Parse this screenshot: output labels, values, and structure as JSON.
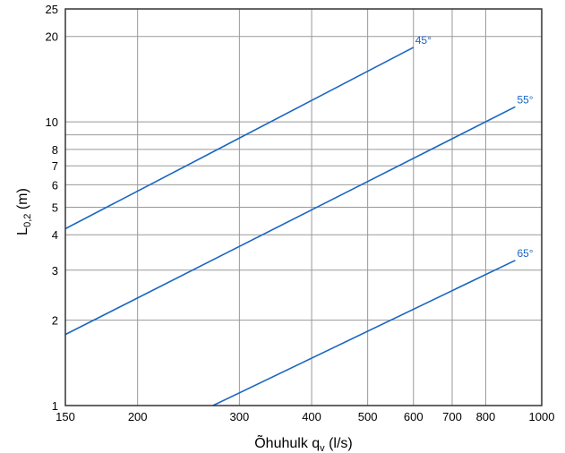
{
  "chart_data": {
    "type": "line",
    "x_scale": "log",
    "y_scale": "log",
    "xlim": [
      150,
      1000
    ],
    "ylim": [
      1,
      25
    ],
    "x_ticks": [
      150,
      200,
      300,
      400,
      500,
      600,
      700,
      800,
      1000
    ],
    "x_tick_labels": [
      "150",
      "200",
      "300",
      "400",
      "500",
      "600",
      "700",
      "800",
      "1000"
    ],
    "y_ticks": [
      1,
      2,
      3,
      4,
      5,
      6,
      7,
      8,
      10,
      20,
      25
    ],
    "y_tick_labels": [
      "1",
      "2",
      "3",
      "4",
      "5",
      "6",
      "7",
      "8",
      "10",
      "20",
      "25"
    ],
    "y_extra_gridlines": [
      9
    ],
    "grid": true,
    "xlabel_main": "Õhuhulk q",
    "xlabel_sub": "v",
    "xlabel_tail": " (l/s)",
    "ylabel_main": "L",
    "ylabel_sub": "0,2",
    "ylabel_tail": " (m)",
    "series": [
      {
        "name": "45°",
        "color": "#1a66c2",
        "x": [
          150,
          600
        ],
        "y": [
          4.2,
          18.3
        ]
      },
      {
        "name": "55°",
        "color": "#1a66c2",
        "x": [
          150,
          900
        ],
        "y": [
          1.78,
          11.3
        ]
      },
      {
        "name": "65°",
        "color": "#1a66c2",
        "x": [
          270,
          900
        ],
        "y": [
          1.0,
          3.25
        ]
      }
    ]
  },
  "colors": {
    "grid": "#999999",
    "frame": "#333333",
    "series": "#1a66c2"
  }
}
